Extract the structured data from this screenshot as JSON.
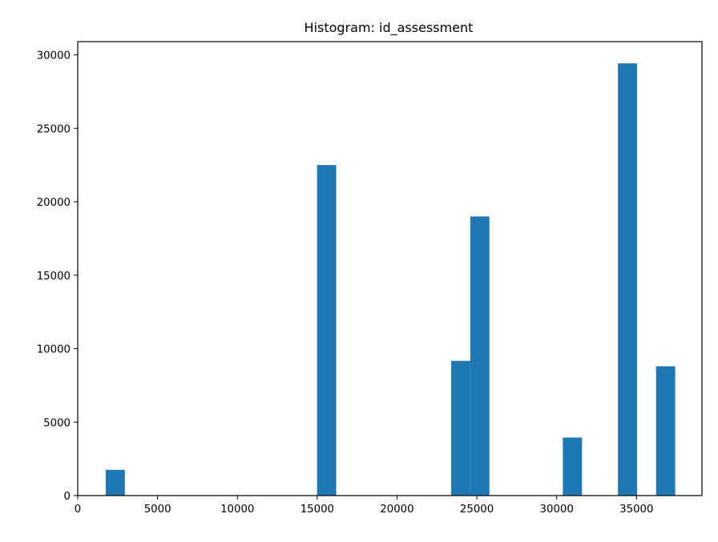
{
  "chart_data": {
    "type": "bar",
    "title": "Histogram: id_assessment",
    "xlabel": "",
    "ylabel": "",
    "xlim": [
      0,
      39100
    ],
    "ylim": [
      0,
      30900
    ],
    "x_ticks": [
      0,
      5000,
      10000,
      15000,
      20000,
      25000,
      30000,
      35000
    ],
    "y_ticks": [
      0,
      5000,
      10000,
      15000,
      20000,
      25000,
      30000
    ],
    "bin_width": 1198,
    "bins": [
      {
        "x0": 1752,
        "x1": 2950,
        "count": 1750
      },
      {
        "x0": 14990,
        "x1": 16188,
        "count": 22500
      },
      {
        "x0": 23390,
        "x1": 24588,
        "count": 9170
      },
      {
        "x0": 24588,
        "x1": 25786,
        "count": 19000
      },
      {
        "x0": 30385,
        "x1": 31583,
        "count": 3950
      },
      {
        "x0": 33835,
        "x1": 35033,
        "count": 29420
      },
      {
        "x0": 36225,
        "x1": 37423,
        "count": 8800
      }
    ],
    "bar_color": "#1f77b4",
    "grid": false
  }
}
